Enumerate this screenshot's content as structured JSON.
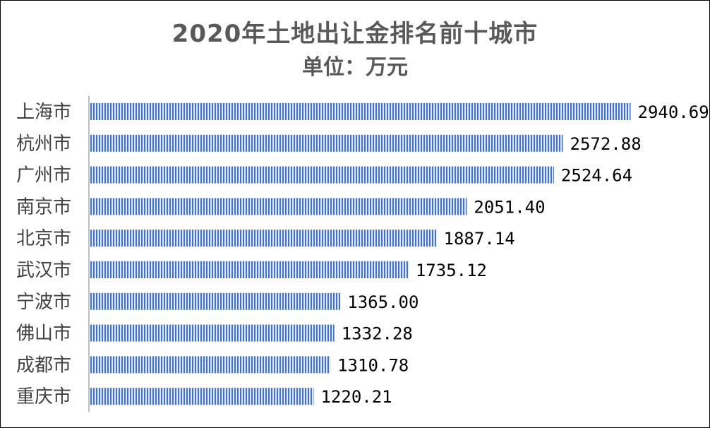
{
  "chart_data": {
    "type": "bar",
    "orientation": "horizontal",
    "title": "2020年土地出让金排名前十城市",
    "subtitle": "单位：万元",
    "categories": [
      "上海市",
      "杭州市",
      "广州市",
      "南京市",
      "北京市",
      "武汉市",
      "宁波市",
      "佛山市",
      "成都市",
      "重庆市"
    ],
    "values": [
      2940.69,
      2572.88,
      2524.64,
      2051.4,
      1887.14,
      1735.12,
      1365.0,
      1332.28,
      1310.78,
      1220.21
    ],
    "value_labels": [
      "2940.69",
      "2572.88",
      "2524.64",
      "2051.40",
      "1887.14",
      "1735.12",
      "1365.00",
      "1332.28",
      "1310.78",
      "1220.21"
    ],
    "xlim": [
      0,
      3000
    ],
    "grid": false,
    "legend": "none",
    "xlabel": "",
    "ylabel": ""
  },
  "colors": {
    "bar_stripe": "#4472C4",
    "bar_background": "#DCE6F4",
    "axis": "#BFBFBF"
  }
}
